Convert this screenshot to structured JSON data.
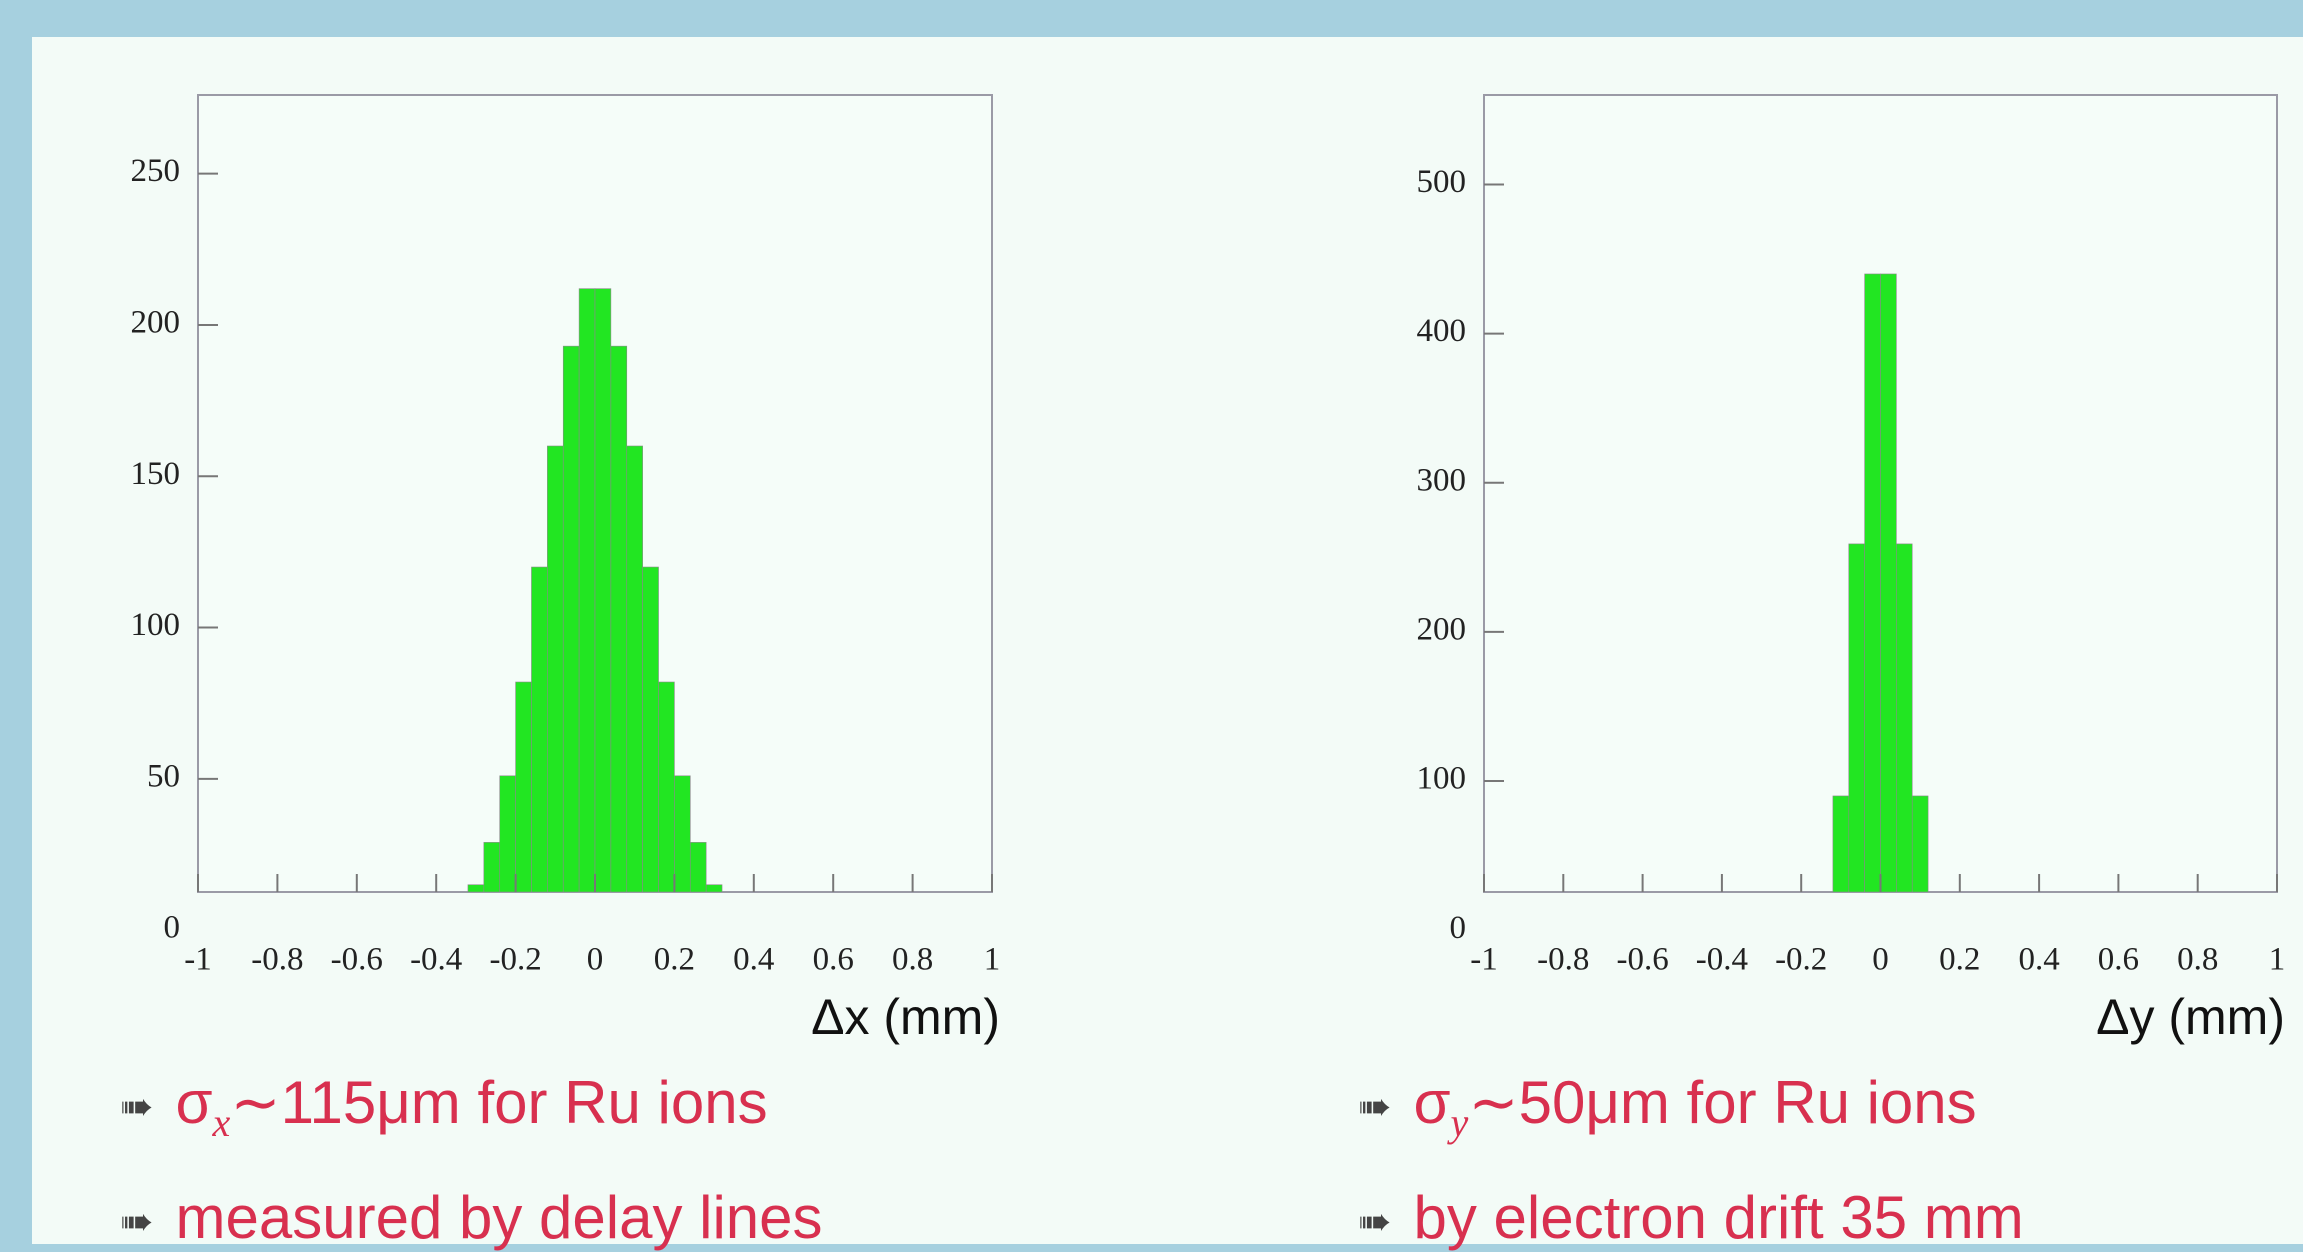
{
  "chart_data": [
    {
      "type": "histogram",
      "xlabel": "Δx (mm)",
      "color": "#22e622",
      "bins": [
        -1,
        -0.96,
        -0.92,
        -0.88,
        -0.84,
        -0.8,
        -0.76,
        -0.72,
        -0.68,
        -0.64,
        -0.6,
        -0.56,
        -0.52,
        -0.48,
        -0.44,
        -0.4,
        -0.36,
        -0.32,
        -0.28,
        -0.24,
        -0.2,
        -0.16,
        -0.12,
        -0.08,
        -0.04,
        0,
        0.04,
        0.08,
        0.12,
        0.16,
        0.2,
        0.24,
        0.28,
        0.32,
        0.36,
        0.4,
        0.44,
        0.48,
        0.52,
        0.56,
        0.6,
        0.64,
        0.68,
        0.72,
        0.76,
        0.8,
        0.84,
        0.88,
        0.92,
        0.96,
        1
      ],
      "values": [
        2,
        2,
        2,
        2,
        2,
        2,
        2,
        2,
        2,
        2,
        2,
        2,
        2,
        2,
        2,
        3,
        7,
        15,
        29,
        51,
        82,
        120,
        160,
        193,
        212,
        212,
        193,
        160,
        120,
        82,
        51,
        29,
        15,
        7,
        3,
        2,
        2,
        2,
        2,
        2,
        2,
        2,
        2,
        2,
        2,
        2,
        2,
        2,
        2,
        2
      ],
      "xlim": [
        -1,
        1
      ],
      "xticks": [
        -1,
        -0.8,
        -0.6,
        -0.4,
        -0.2,
        0,
        0.2,
        0.4,
        0.6,
        0.8,
        1
      ],
      "ylim": [
        12.6,
        276
      ],
      "yticks": [
        0,
        50,
        100,
        150,
        200,
        250
      ]
    },
    {
      "type": "histogram",
      "xlabel": "Δy (mm)",
      "color": "#22e622",
      "bins": [
        -1,
        -0.96,
        -0.92,
        -0.88,
        -0.84,
        -0.8,
        -0.76,
        -0.72,
        -0.68,
        -0.64,
        -0.6,
        -0.56,
        -0.52,
        -0.48,
        -0.44,
        -0.4,
        -0.36,
        -0.32,
        -0.28,
        -0.24,
        -0.2,
        -0.16,
        -0.12,
        -0.08,
        -0.04,
        0,
        0.04,
        0.08,
        0.12,
        0.16,
        0.2,
        0.24,
        0.28,
        0.32,
        0.36,
        0.4,
        0.44,
        0.48,
        0.52,
        0.56,
        0.6,
        0.64,
        0.68,
        0.72,
        0.76,
        0.8,
        0.84,
        0.88,
        0.92,
        0.96,
        1
      ],
      "values": [
        1,
        1,
        1,
        1,
        1,
        1,
        1,
        1,
        1,
        1,
        1,
        1,
        1,
        1,
        1,
        1,
        1,
        1,
        1,
        1,
        2,
        18,
        90,
        259,
        440,
        440,
        259,
        90,
        18,
        2,
        1,
        1,
        1,
        1,
        1,
        1,
        1,
        1,
        1,
        1,
        1,
        1,
        1,
        1,
        1,
        1,
        1,
        1,
        1,
        1
      ],
      "xlim": [
        -1,
        1
      ],
      "xticks": [
        -1,
        -0.8,
        -0.6,
        -0.4,
        -0.2,
        0,
        0.2,
        0.4,
        0.6,
        0.8,
        1
      ],
      "ylim": [
        25.6,
        560
      ],
      "yticks": [
        0,
        100,
        200,
        300,
        400,
        500
      ]
    }
  ],
  "bullets": [
    [
      {
        "symbol": "σ",
        "sub": "x",
        "text": "∼115μm for Ru ions"
      },
      {
        "text": "measured by delay lines"
      }
    ],
    [
      {
        "symbol": "σ",
        "sub": "y",
        "text": "∼50μm for Ru ions"
      },
      {
        "text": "by electron drift 35 mm"
      }
    ]
  ]
}
